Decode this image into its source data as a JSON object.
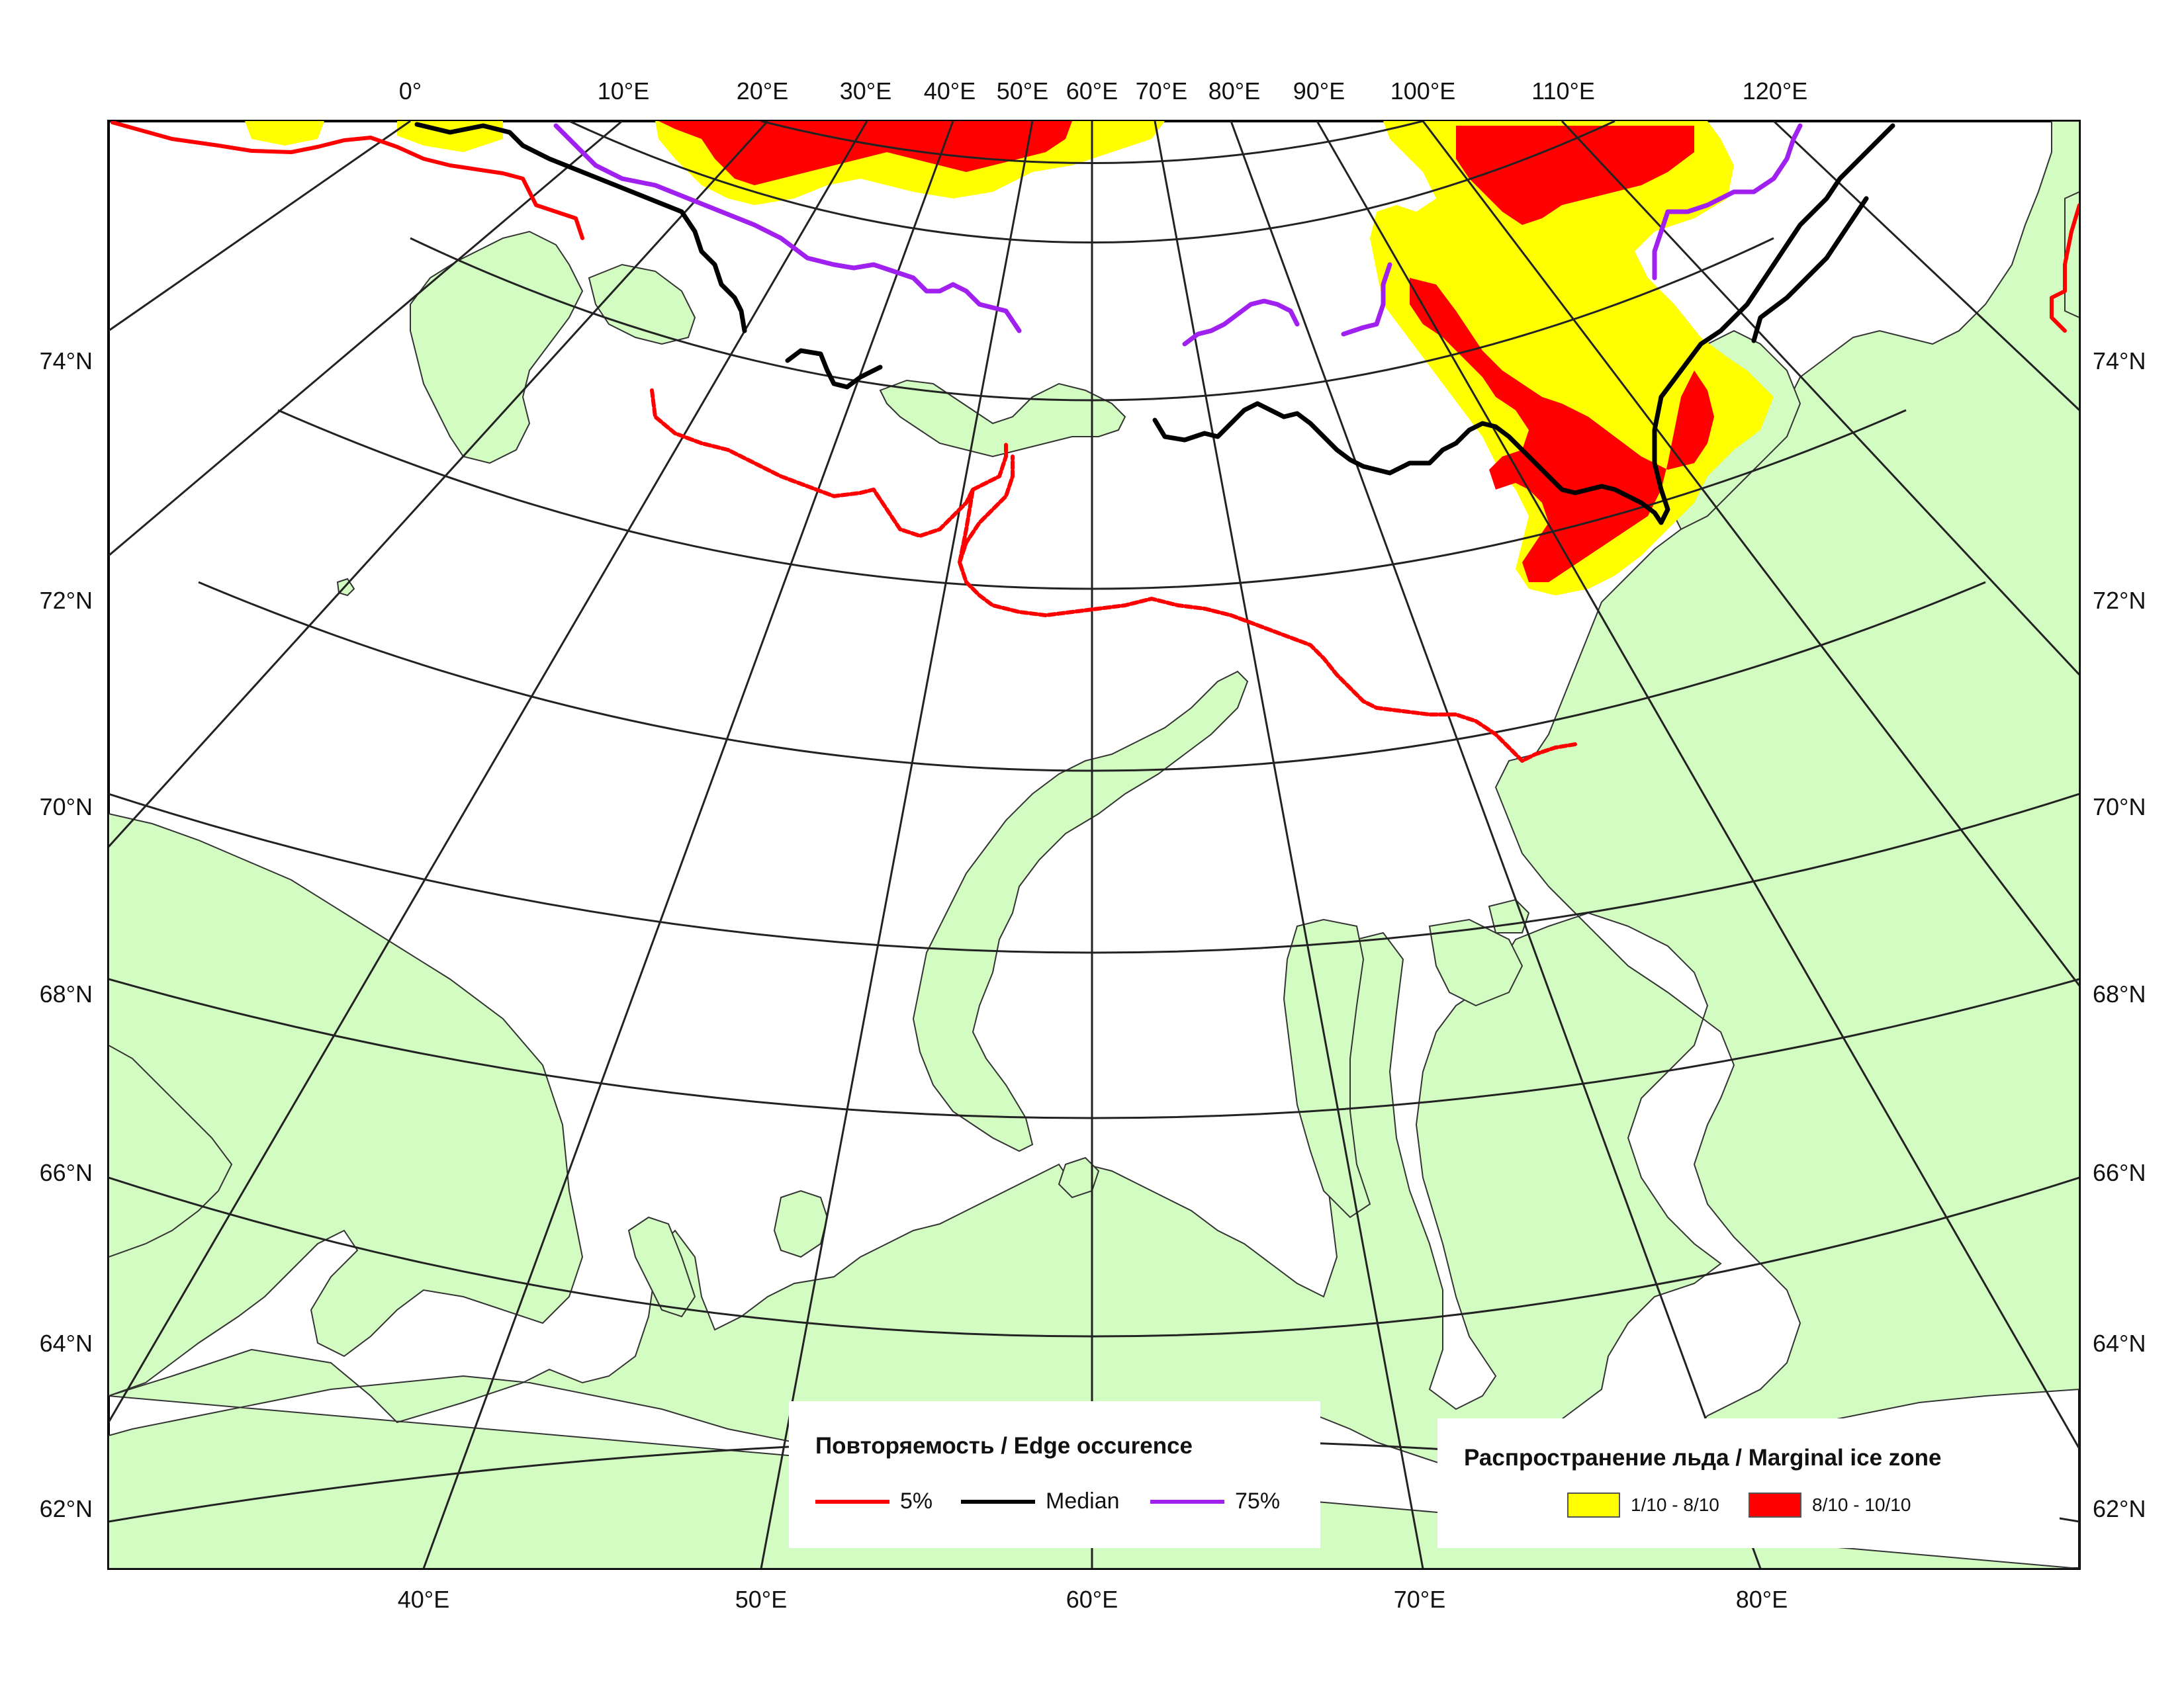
{
  "map": {
    "top_lon_labels": [
      "0°",
      "10°E",
      "20°E",
      "30°E",
      "40°E",
      "50°E",
      "60°E",
      "70°E",
      "80°E",
      "90°E",
      "100°E",
      "110°E",
      "120°E"
    ],
    "bottom_lon_labels": [
      "40°E",
      "50°E",
      "60°E",
      "70°E",
      "80°E"
    ],
    "left_lat_labels": [
      "74°N",
      "72°N",
      "70°N",
      "68°N",
      "66°N",
      "64°N",
      "62°N"
    ],
    "right_lat_labels": [
      "74°N",
      "72°N",
      "70°N",
      "68°N",
      "66°N",
      "64°N",
      "62°N"
    ],
    "colors": {
      "land": "#d3fcc2",
      "sea": "#ffffff",
      "edge_5": "#ff0000",
      "median": "#000000",
      "edge_75": "#a020f0",
      "ice_low": "#ffff00",
      "ice_high": "#ff0000",
      "graticule": "#222222"
    }
  },
  "legend_edge": {
    "title": "Повторяемость / Edge occurence",
    "items": [
      {
        "label": "5%",
        "color": "#ff0000"
      },
      {
        "label": "Median",
        "color": "#000000"
      },
      {
        "label": "75%",
        "color": "#a020f0"
      }
    ]
  },
  "legend_ice": {
    "title": "Распространение льда / Marginal ice zone",
    "items": [
      {
        "label": "1/10 - 8/10",
        "color": "#ffff00"
      },
      {
        "label": "8/10 - 10/10",
        "color": "#ff0000"
      }
    ]
  }
}
